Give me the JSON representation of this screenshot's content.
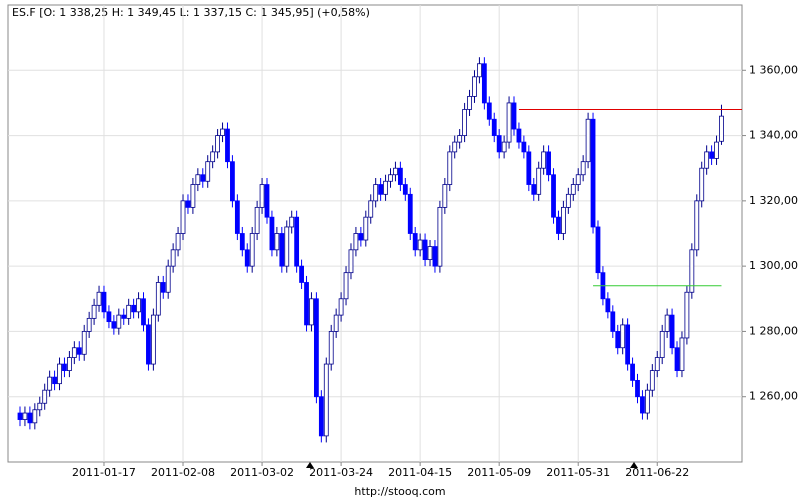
{
  "chart_data": {
    "type": "candlestick",
    "title": "ES.F [O: 1 338,25  H: 1 349,45  L: 1 337,15  C: 1 345,95] (+0,58%)",
    "source": "http://stooq.com",
    "categories": [
      null,
      null,
      null,
      null,
      null,
      null,
      null,
      null,
      null,
      null,
      null,
      null,
      null,
      null,
      null,
      null,
      null,
      "2011-01-17",
      null,
      null,
      null,
      null,
      null,
      null,
      null,
      null,
      null,
      null,
      null,
      null,
      null,
      null,
      null,
      "2011-02-08",
      null,
      null,
      null,
      null,
      null,
      null,
      null,
      null,
      null,
      null,
      null,
      null,
      null,
      null,
      null,
      "2011-03-02",
      null,
      null,
      null,
      null,
      null,
      null,
      null,
      null,
      null,
      null,
      null,
      null,
      null,
      null,
      null,
      "2011-03-24",
      null,
      null,
      null,
      null,
      null,
      null,
      null,
      null,
      null,
      null,
      null,
      null,
      null,
      null,
      null,
      "2011-04-15",
      null,
      null,
      null,
      null,
      null,
      null,
      null,
      null,
      null,
      null,
      null,
      null,
      null,
      null,
      null,
      "2011-05-09",
      null,
      null,
      null,
      null,
      null,
      null,
      null,
      null,
      null,
      null,
      null,
      null,
      null,
      null,
      null,
      "2011-05-31",
      null,
      null,
      null,
      null,
      null,
      null,
      null,
      null,
      null,
      null,
      null,
      null,
      null,
      null,
      null,
      "2011-06-22",
      null,
      null,
      null,
      null,
      null,
      null,
      null,
      null,
      null,
      null,
      null,
      null,
      null
    ],
    "open": [
      1255,
      1253,
      1255,
      1252,
      1256,
      1258,
      1262,
      1266,
      1264,
      1270,
      1268,
      1272,
      1275,
      1273,
      1280,
      1284,
      1288,
      1292,
      1286,
      1283,
      1281,
      1285,
      1284,
      1288,
      1286,
      1290,
      1282,
      1270,
      1285,
      1295,
      1292,
      1300,
      1305,
      1310,
      1320,
      1318,
      1325,
      1328,
      1326,
      1332,
      1335,
      1340,
      1342,
      1332,
      1320,
      1310,
      1305,
      1300,
      1310,
      1318,
      1325,
      1315,
      1305,
      1310,
      1300,
      1312,
      1315,
      1300,
      1295,
      1282,
      1290,
      1260,
      1248,
      1270,
      1280,
      1285,
      1290,
      1298,
      1305,
      1310,
      1308,
      1315,
      1320,
      1325,
      1322,
      1326,
      1328,
      1330,
      1325,
      1322,
      1310,
      1305,
      1308,
      1302,
      1306,
      1300,
      1318,
      1325,
      1335,
      1338,
      1340,
      1348,
      1352,
      1358,
      1362,
      1350,
      1345,
      1340,
      1335,
      1338,
      1350,
      1342,
      1338,
      1335,
      1325,
      1322,
      1330,
      1335,
      1328,
      1315,
      1310,
      1318,
      1322,
      1325,
      1328,
      1332,
      1345,
      1312,
      1298,
      1290,
      1286,
      1280,
      1275,
      1282,
      1270,
      1265,
      1260,
      1255,
      1262,
      1268,
      1272,
      1280,
      1285,
      1275,
      1268,
      1278,
      1292,
      1305,
      1320,
      1330,
      1335,
      1333,
      1338.25
    ],
    "high": [
      1257,
      1257,
      1257,
      1258,
      1260,
      1264,
      1268,
      1268,
      1272,
      1272,
      1274,
      1277,
      1277,
      1282,
      1286,
      1290,
      1294,
      1294,
      1288,
      1285,
      1287,
      1287,
      1290,
      1290,
      1292,
      1292,
      1284,
      1287,
      1297,
      1297,
      1302,
      1307,
      1312,
      1322,
      1322,
      1327,
      1330,
      1330,
      1334,
      1337,
      1342,
      1344,
      1344,
      1334,
      1322,
      1312,
      1307,
      1312,
      1320,
      1327,
      1327,
      1317,
      1312,
      1312,
      1314,
      1317,
      1317,
      1302,
      1297,
      1292,
      1292,
      1262,
      1272,
      1282,
      1287,
      1292,
      1300,
      1307,
      1312,
      1312,
      1317,
      1322,
      1327,
      1327,
      1328,
      1330,
      1332,
      1332,
      1327,
      1324,
      1312,
      1310,
      1310,
      1308,
      1308,
      1320,
      1327,
      1337,
      1340,
      1342,
      1350,
      1354,
      1360,
      1364,
      1364,
      1352,
      1347,
      1342,
      1340,
      1352,
      1352,
      1344,
      1340,
      1337,
      1327,
      1332,
      1337,
      1337,
      1330,
      1317,
      1320,
      1324,
      1327,
      1330,
      1334,
      1347,
      1347,
      1314,
      1300,
      1292,
      1288,
      1282,
      1284,
      1284,
      1272,
      1267,
      1262,
      1264,
      1270,
      1274,
      1282,
      1287,
      1287,
      1277,
      1280,
      1294,
      1307,
      1322,
      1332,
      1337,
      1337,
      1340,
      1349.45
    ],
    "low": [
      1251,
      1251,
      1250,
      1250,
      1254,
      1256,
      1260,
      1262,
      1262,
      1266,
      1266,
      1270,
      1271,
      1271,
      1278,
      1282,
      1286,
      1284,
      1281,
      1279,
      1279,
      1282,
      1282,
      1284,
      1284,
      1280,
      1268,
      1268,
      1283,
      1290,
      1290,
      1298,
      1303,
      1308,
      1316,
      1316,
      1323,
      1324,
      1324,
      1330,
      1333,
      1338,
      1330,
      1318,
      1308,
      1303,
      1298,
      1298,
      1308,
      1316,
      1313,
      1303,
      1303,
      1298,
      1298,
      1310,
      1298,
      1293,
      1280,
      1280,
      1258,
      1246,
      1246,
      1268,
      1278,
      1283,
      1288,
      1296,
      1303,
      1306,
      1306,
      1313,
      1318,
      1320,
      1320,
      1324,
      1326,
      1323,
      1320,
      1308,
      1303,
      1303,
      1300,
      1300,
      1298,
      1298,
      1316,
      1323,
      1333,
      1336,
      1338,
      1346,
      1350,
      1356,
      1348,
      1343,
      1338,
      1333,
      1333,
      1336,
      1340,
      1336,
      1333,
      1323,
      1320,
      1320,
      1328,
      1326,
      1313,
      1308,
      1308,
      1316,
      1320,
      1323,
      1326,
      1330,
      1310,
      1296,
      1288,
      1284,
      1278,
      1273,
      1273,
      1268,
      1263,
      1258,
      1253,
      1253,
      1260,
      1266,
      1270,
      1278,
      1273,
      1266,
      1266,
      1276,
      1290,
      1303,
      1318,
      1328,
      1331,
      1331,
      1337.15
    ],
    "close": [
      1253,
      1255,
      1252,
      1256,
      1258,
      1262,
      1266,
      1264,
      1270,
      1268,
      1272,
      1275,
      1273,
      1280,
      1284,
      1288,
      1292,
      1286,
      1283,
      1281,
      1285,
      1284,
      1288,
      1286,
      1290,
      1282,
      1270,
      1285,
      1295,
      1292,
      1300,
      1305,
      1310,
      1320,
      1318,
      1325,
      1328,
      1326,
      1332,
      1335,
      1340,
      1342,
      1332,
      1320,
      1310,
      1305,
      1300,
      1310,
      1318,
      1325,
      1315,
      1305,
      1310,
      1300,
      1312,
      1315,
      1300,
      1295,
      1282,
      1290,
      1260,
      1248,
      1270,
      1280,
      1285,
      1290,
      1298,
      1305,
      1310,
      1308,
      1315,
      1320,
      1325,
      1322,
      1326,
      1328,
      1330,
      1325,
      1322,
      1310,
      1305,
      1308,
      1302,
      1306,
      1300,
      1318,
      1325,
      1335,
      1338,
      1340,
      1348,
      1352,
      1358,
      1362,
      1350,
      1345,
      1340,
      1335,
      1338,
      1350,
      1342,
      1338,
      1335,
      1325,
      1322,
      1330,
      1335,
      1328,
      1315,
      1310,
      1318,
      1322,
      1325,
      1328,
      1332,
      1345,
      1312,
      1298,
      1290,
      1286,
      1280,
      1275,
      1282,
      1270,
      1265,
      1260,
      1255,
      1262,
      1268,
      1272,
      1280,
      1285,
      1275,
      1268,
      1278,
      1292,
      1305,
      1320,
      1330,
      1335,
      1333,
      1338,
      1345.95
    ],
    "up_color": "#ffffff",
    "down_color": "#0000ff",
    "outline_color": "#00008b",
    "levels": [
      {
        "value": 1348,
        "start": 101,
        "color": "#e00000"
      },
      {
        "value": 1294,
        "start": 116,
        "color": "#33cc33"
      }
    ],
    "ylim": [
      1240,
      1380
    ],
    "yticks": [
      {
        "value": 1260,
        "label": "1 260,00"
      },
      {
        "value": 1280,
        "label": "1 280,00"
      },
      {
        "value": 1300,
        "label": "1 300,00"
      },
      {
        "value": 1320,
        "label": "1 320,00"
      },
      {
        "value": 1340,
        "label": "1 340,00"
      },
      {
        "value": 1360,
        "label": "1 360,00"
      }
    ],
    "grid": true
  }
}
